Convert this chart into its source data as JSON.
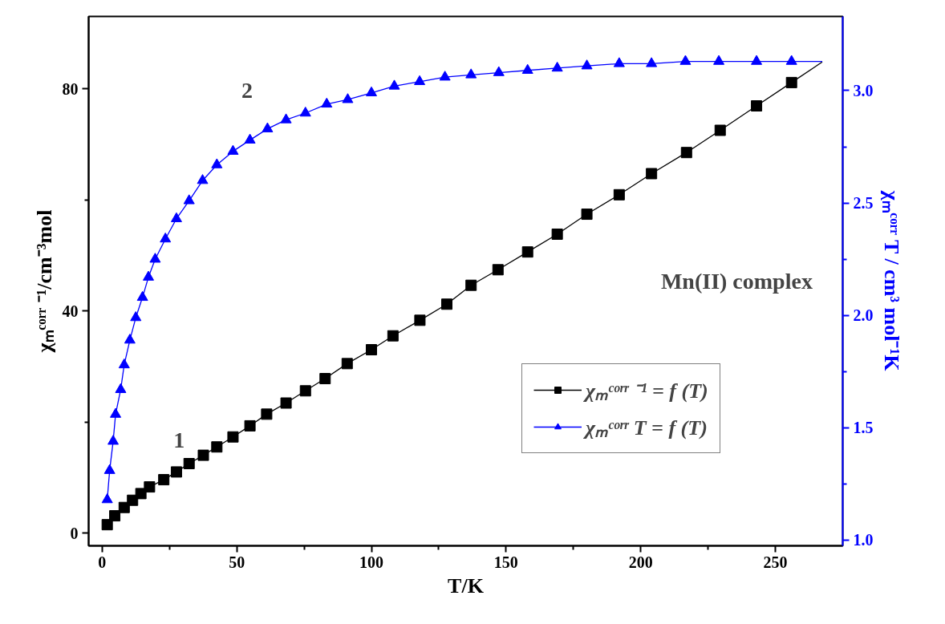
{
  "chart_data": {
    "type": "line",
    "xlabel": "T/K",
    "ylabel": "χₘᶜᵒʳʳ ⁻¹/cm⁻³mol",
    "y2label": "χₘᶜᵒʳʳ T / cm³ mol⁻¹K",
    "xlim": [
      -5,
      275
    ],
    "xticks": [
      0,
      50,
      100,
      150,
      200,
      250
    ],
    "ylim": [
      -2.3,
      93
    ],
    "yticks": [
      0,
      40,
      80
    ],
    "y2lim": [
      0.975,
      3.33
    ],
    "y2ticks": [
      {
        "value": 1.0,
        "label": "1.0"
      },
      1.5,
      {
        "value": 2.0,
        "label": "2.0"
      },
      2.5,
      {
        "value": 3.0,
        "label": "3.0"
      }
    ],
    "grid": false,
    "legend": "right",
    "line_style": "solid",
    "series": [
      {
        "name": "χₘᶜᵒʳʳ ⁻¹ = f (T)",
        "color": "#000000",
        "marker": "square",
        "x": [
          1.9,
          4.7,
          8.2,
          11.3,
          14.4,
          17.6,
          22.9,
          27.6,
          32.3,
          37.6,
          42.6,
          48.6,
          54.9,
          61.1,
          68.3,
          75.5,
          82.8,
          91,
          100,
          108,
          118,
          128,
          137,
          147,
          158,
          169,
          180,
          192,
          204,
          217,
          229.5,
          243,
          256
        ],
        "values": [
          1.5,
          3.1,
          4.6,
          5.9,
          7.1,
          8.3,
          9.6,
          11.0,
          12.5,
          14.0,
          15.5,
          17.3,
          19.3,
          21.4,
          23.4,
          25.6,
          27.8,
          30.5,
          33.0,
          35.5,
          38.3,
          41.2,
          44.6,
          47.4,
          50.6,
          53.8,
          57.4,
          60.9,
          64.7,
          68.5,
          72.5,
          76.9,
          81.1
        ]
      },
      {
        "name": "χₘᶜᵒʳʳ T = f (T)",
        "color": "#0000ff",
        "marker": "triangle",
        "axis": "y2",
        "x": [
          1.9,
          2.8,
          4.1,
          5.0,
          6.9,
          8.2,
          10.3,
          12.5,
          15.0,
          17.2,
          19.7,
          23.5,
          27.6,
          32.3,
          37.3,
          42.6,
          48.6,
          54.9,
          61.4,
          68.3,
          75.5,
          83.4,
          91.2,
          100,
          108.5,
          117.9,
          127.3,
          137,
          147.3,
          158,
          169,
          180,
          192,
          204,
          216.6,
          229,
          243,
          256
        ],
        "values": [
          1.18,
          1.31,
          1.44,
          1.56,
          1.67,
          1.78,
          1.89,
          1.99,
          2.08,
          2.17,
          2.25,
          2.34,
          2.43,
          2.51,
          2.6,
          2.67,
          2.73,
          2.78,
          2.83,
          2.87,
          2.9,
          2.94,
          2.96,
          2.99,
          3.02,
          3.04,
          3.06,
          3.07,
          3.08,
          3.09,
          3.1,
          3.11,
          3.12,
          3.12,
          3.13,
          3.13,
          3.13,
          3.13
        ]
      },
      {
        "color": "#000000",
        "marker": "none",
        "x": [
          256,
          267.4
        ],
        "values": [
          81.1,
          84.8
        ]
      },
      {
        "color": "#0000ff",
        "marker": "none",
        "axis": "y2",
        "x": [
          256,
          267.4
        ],
        "values": [
          3.13,
          3.13
        ]
      }
    ],
    "annotations": [
      "1",
      "2",
      "Mn(II) complex"
    ]
  }
}
